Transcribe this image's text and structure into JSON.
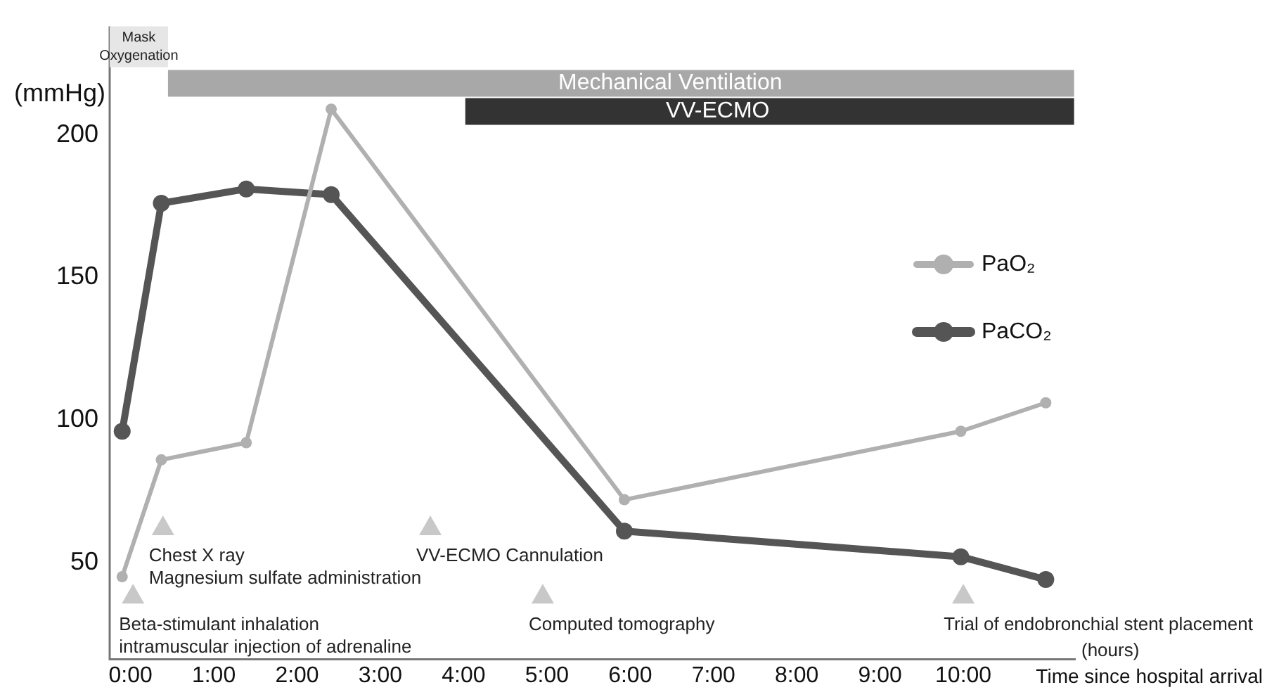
{
  "chart_data": {
    "type": "line",
    "ylabel": "(mmHg)",
    "xlabel": "Time since hospital arrival",
    "xlim": [
      -0.25,
      11.35
    ],
    "ylim": [
      16,
      238
    ],
    "xticks": [
      {
        "value": 0,
        "label": "0:00"
      },
      {
        "value": 1,
        "label": "1:00"
      },
      {
        "value": 2,
        "label": "2:00"
      },
      {
        "value": 3,
        "label": "3:00"
      },
      {
        "value": 4,
        "label": "4:00"
      },
      {
        "value": 5,
        "label": "5:00"
      },
      {
        "value": 6,
        "label": "6:00"
      },
      {
        "value": 7,
        "label": "7:00"
      },
      {
        "value": 8,
        "label": "8:00"
      },
      {
        "value": 9,
        "label": "9:00"
      },
      {
        "value": 10,
        "label": "10:00"
      }
    ],
    "yticks": [
      50,
      100,
      150,
      200
    ],
    "x": [
      -0.1,
      0.37,
      1.39,
      2.41,
      5.93,
      9.97,
      10.99
    ],
    "series": [
      {
        "name": "PaO₂",
        "color": "#b0b0b0",
        "values": [
          45,
          86,
          92,
          209,
          72,
          96,
          106
        ]
      },
      {
        "name": "PaCO₂",
        "color": "#555555",
        "values": [
          96,
          176,
          181,
          179,
          61,
          52,
          44
        ]
      }
    ],
    "marker": "circle",
    "line_style": "solid",
    "grid": false,
    "legend": "right",
    "bands": [
      {
        "axis": "x",
        "from": -0.25,
        "to": 0.45,
        "label": "Mask\nOxygenation",
        "color": "#e6e6e6"
      },
      {
        "axis": "x",
        "from": 0.45,
        "to": 11.33,
        "label": "Mechanical Ventilation",
        "color": "#a8a8a8"
      },
      {
        "axis": "x",
        "from": 4.02,
        "to": 11.33,
        "label": "VV-ECMO",
        "color": "#333333"
      }
    ],
    "annotations": [
      {
        "text": "Beta-stimulant inhalation\nintramuscular injection of adrenaline",
        "x": 0.03,
        "y": 39
      },
      {
        "text": "Chest X ray\nMagnesium sulfate administration",
        "x": 0.39,
        "y": 63
      },
      {
        "text": "VV-ECMO Cannulation",
        "x": 3.6,
        "y": 63
      },
      {
        "text": "Computed tomography",
        "x": 4.95,
        "y": 39
      },
      {
        "text": "Trial of endobronchial stent placement",
        "x": 10.0,
        "y": 39
      },
      "(hours)"
    ]
  }
}
